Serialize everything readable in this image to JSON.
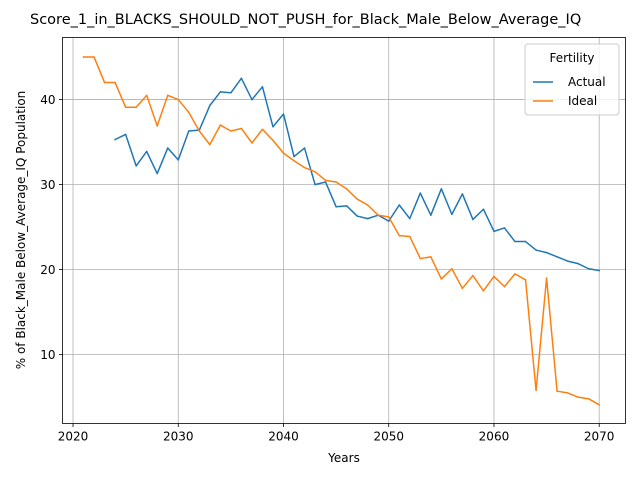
{
  "chart_data": {
    "type": "line",
    "title": "Score_1_in_BLACKS_SHOULD_NOT_PUSH_for_Black_Male_Below_Average_IQ",
    "xlabel": "Years",
    "ylabel": "% of Black_Male Below_Average_IQ Population",
    "xlim": [
      2019,
      2072.5
    ],
    "ylim": [
      1.9,
      47.3
    ],
    "xticks": [
      2020,
      2030,
      2040,
      2050,
      2060,
      2070
    ],
    "xtick_labels": [
      "2020",
      "2030",
      "2040",
      "2050",
      "2060",
      "2070"
    ],
    "yticks": [
      10,
      20,
      30,
      40
    ],
    "ytick_labels": [
      "10",
      "20",
      "30",
      "40"
    ],
    "grid": true,
    "legend": {
      "title": "Fertility",
      "position": "top-right"
    },
    "series": [
      {
        "name": "Actual",
        "color": "#1f77b4",
        "x": [
          2024,
          2025,
          2026,
          2027,
          2028,
          2029,
          2030,
          2031,
          2032,
          2033,
          2034,
          2035,
          2036,
          2037,
          2038,
          2039,
          2040,
          2041,
          2042,
          2043,
          2044,
          2045,
          2046,
          2047,
          2048,
          2049,
          2050,
          2051,
          2052,
          2053,
          2054,
          2055,
          2056,
          2057,
          2058,
          2059,
          2060,
          2061,
          2062,
          2063,
          2064,
          2065,
          2066,
          2067,
          2068,
          2069,
          2070
        ],
        "values": [
          35.3,
          35.9,
          32.2,
          33.9,
          31.3,
          34.3,
          32.9,
          36.3,
          36.4,
          39.3,
          40.9,
          40.8,
          42.5,
          40.0,
          41.5,
          36.8,
          38.3,
          33.3,
          34.3,
          30.0,
          30.3,
          27.4,
          27.5,
          26.3,
          26.0,
          26.4,
          25.7,
          27.6,
          26.0,
          29.0,
          26.4,
          29.5,
          26.5,
          28.9,
          25.9,
          27.1,
          24.5,
          24.9,
          23.3,
          23.3,
          22.3,
          22.0,
          21.5,
          21.0,
          20.7,
          20.1,
          19.9
        ]
      },
      {
        "name": "Ideal",
        "color": "#ff7f0e",
        "x": [
          2021,
          2022,
          2023,
          2024,
          2025,
          2026,
          2027,
          2028,
          2029,
          2030,
          2031,
          2032,
          2033,
          2034,
          2035,
          2036,
          2037,
          2038,
          2039,
          2040,
          2041,
          2042,
          2043,
          2044,
          2045,
          2046,
          2047,
          2048,
          2049,
          2050,
          2051,
          2052,
          2053,
          2054,
          2055,
          2056,
          2057,
          2058,
          2059,
          2060,
          2061,
          2062,
          2063,
          2064,
          2065,
          2066,
          2067,
          2068,
          2069,
          2070
        ],
        "values": [
          45.0,
          45.0,
          42.0,
          42.0,
          39.1,
          39.1,
          40.5,
          36.9,
          40.5,
          40.0,
          38.5,
          36.3,
          34.7,
          37.0,
          36.3,
          36.6,
          34.9,
          36.5,
          35.2,
          33.7,
          32.8,
          32.0,
          31.5,
          30.5,
          30.3,
          29.5,
          28.3,
          27.6,
          26.4,
          26.2,
          24.0,
          23.9,
          21.3,
          21.5,
          18.9,
          20.1,
          17.8,
          19.3,
          17.5,
          19.2,
          18.0,
          19.5,
          18.8,
          5.8,
          19.0,
          5.7,
          5.5,
          5.0,
          4.8,
          4.1
        ]
      }
    ]
  }
}
